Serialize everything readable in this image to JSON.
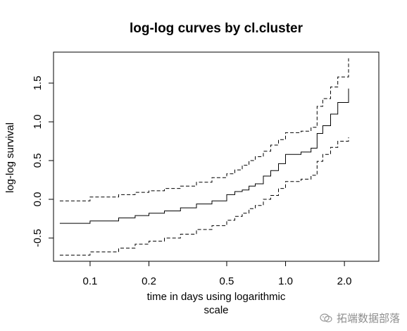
{
  "chart_data": {
    "type": "line",
    "title": "log-log curves by cl.cluster",
    "xlabel": "time in days using logarithmic\nscale",
    "ylabel": "log-log survival",
    "x_scale": "log",
    "xlim": [
      0.065,
      3.0
    ],
    "ylim": [
      -0.8,
      1.9
    ],
    "x_ticks": [
      0.1,
      0.2,
      0.5,
      1.0,
      2.0
    ],
    "x_tick_labels": [
      "0.1",
      "0.2",
      "0.5",
      "1.0",
      "2.0"
    ],
    "y_ticks": [
      -0.5,
      0.0,
      0.5,
      1.0,
      1.5
    ],
    "y_tick_labels": [
      "-0.5",
      "0.0",
      "0.5",
      "1.0",
      "1.5"
    ],
    "grid": false,
    "step": true,
    "series": [
      {
        "style": "solid",
        "x": [
          0.07,
          0.1,
          0.14,
          0.17,
          0.2,
          0.24,
          0.29,
          0.35,
          0.42,
          0.5,
          0.55,
          0.6,
          0.65,
          0.7,
          0.77,
          0.84,
          0.92,
          1.0,
          1.2,
          1.35,
          1.45,
          1.55,
          1.7,
          1.85,
          2.1
        ],
        "y": [
          -0.31,
          -0.28,
          -0.24,
          -0.21,
          -0.18,
          -0.15,
          -0.11,
          -0.06,
          -0.02,
          0.06,
          0.1,
          0.12,
          0.17,
          0.2,
          0.3,
          0.37,
          0.46,
          0.58,
          0.61,
          0.66,
          0.85,
          0.95,
          1.1,
          1.25,
          1.43
        ]
      },
      {
        "style": "dashed",
        "x": [
          0.07,
          0.1,
          0.14,
          0.17,
          0.2,
          0.24,
          0.29,
          0.35,
          0.42,
          0.5,
          0.55,
          0.6,
          0.65,
          0.7,
          0.77,
          0.84,
          0.92,
          1.0,
          1.2,
          1.35,
          1.45,
          1.55,
          1.7,
          1.85,
          2.1
        ],
        "y": [
          -0.02,
          0.03,
          0.06,
          0.09,
          0.11,
          0.14,
          0.17,
          0.22,
          0.28,
          0.33,
          0.38,
          0.44,
          0.5,
          0.55,
          0.62,
          0.7,
          0.77,
          0.86,
          0.88,
          0.93,
          1.2,
          1.3,
          1.45,
          1.58,
          1.82
        ]
      },
      {
        "style": "dashed",
        "x": [
          0.07,
          0.1,
          0.14,
          0.17,
          0.2,
          0.24,
          0.29,
          0.35,
          0.42,
          0.5,
          0.55,
          0.6,
          0.65,
          0.7,
          0.77,
          0.84,
          0.92,
          1.0,
          1.2,
          1.35,
          1.45,
          1.55,
          1.7,
          1.85,
          2.1
        ],
        "y": [
          -0.72,
          -0.68,
          -0.63,
          -0.58,
          -0.54,
          -0.5,
          -0.45,
          -0.39,
          -0.34,
          -0.27,
          -0.22,
          -0.18,
          -0.12,
          -0.08,
          0.0,
          0.05,
          0.14,
          0.23,
          0.26,
          0.31,
          0.49,
          0.58,
          0.67,
          0.75,
          0.8
        ]
      }
    ],
    "line_color": "#000000"
  },
  "watermark": {
    "text": "拓端数据部落",
    "icon": "wechat-icon"
  }
}
